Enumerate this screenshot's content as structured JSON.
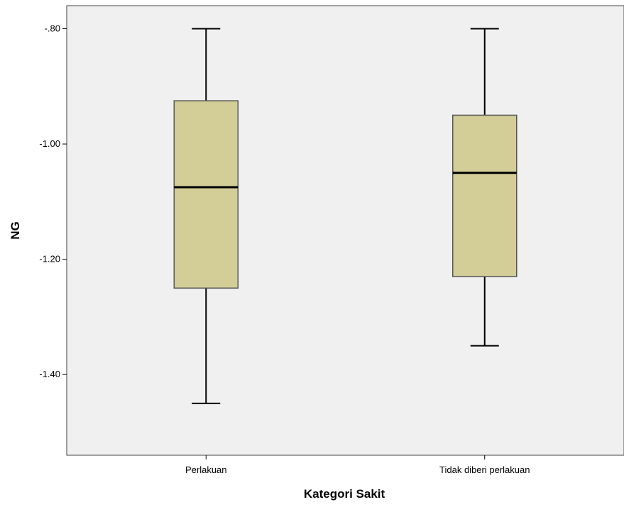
{
  "chart_data": {
    "type": "boxplot",
    "title": "",
    "xlabel": "Kategori Sakit",
    "ylabel": "NG",
    "ylim": [
      -1.54,
      -0.76
    ],
    "yticks": [
      {
        "value": -0.8,
        "label": "-.80"
      },
      {
        "value": -1.0,
        "label": "-1.00"
      },
      {
        "value": -1.2,
        "label": "-1.20"
      },
      {
        "value": -1.4,
        "label": "-1.40"
      }
    ],
    "categories": [
      "Perlakuan",
      "Tidak diberi perlakuan"
    ],
    "boxes": [
      {
        "category": "Perlakuan",
        "whisker_high": -0.8,
        "q3": -0.925,
        "median": -1.075,
        "q1": -1.25,
        "whisker_low": -1.45
      },
      {
        "category": "Tidak diberi perlakuan",
        "whisker_high": -0.8,
        "q3": -0.95,
        "median": -1.05,
        "q1": -1.23,
        "whisker_low": -1.35
      }
    ],
    "box_color": "#d3cd98",
    "plot_background": "#f0f0f0",
    "grid": false,
    "legend": "none"
  }
}
